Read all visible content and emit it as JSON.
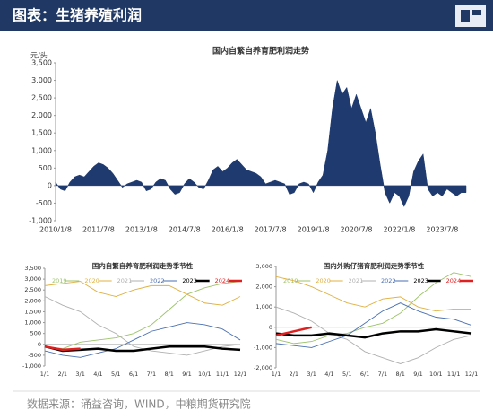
{
  "header": {
    "title": "图表：生猪养殖利润"
  },
  "source": "数据来源：涌益咨询，WIND，中粮期货研究院",
  "chart_data": [
    {
      "type": "area",
      "title": "国内自繁自养育肥利润走势",
      "y_label": "元/头",
      "color": "#1f3a6e",
      "categories": [
        "2010/1/8",
        null,
        null,
        null,
        null,
        null,
        null,
        null,
        null,
        "2011/7/8",
        null,
        null,
        null,
        null,
        null,
        null,
        null,
        null,
        "2013/1/8",
        null,
        null,
        null,
        null,
        null,
        null,
        null,
        null,
        "2014/7/8",
        null,
        null,
        null,
        null,
        null,
        null,
        null,
        null,
        "2016/1/8",
        null,
        null,
        null,
        null,
        null,
        null,
        null,
        null,
        "2017/7/8",
        null,
        null,
        null,
        null,
        null,
        null,
        null,
        null,
        "2019/1/8",
        null,
        null,
        null,
        null,
        null,
        null,
        null,
        null,
        "2020/7/8",
        null,
        null,
        null,
        null,
        null,
        null,
        null,
        null,
        "2022/1/8",
        null,
        null,
        null,
        null,
        null,
        null,
        null,
        null,
        "2023/7/8",
        null,
        null,
        null,
        null,
        null
      ],
      "values": [
        100,
        -100,
        -150,
        100,
        250,
        300,
        250,
        400,
        550,
        650,
        600,
        500,
        350,
        150,
        -50,
        50,
        100,
        150,
        100,
        -150,
        -100,
        100,
        200,
        150,
        -100,
        -250,
        -200,
        50,
        200,
        100,
        -50,
        -100,
        150,
        450,
        550,
        400,
        500,
        650,
        750,
        600,
        450,
        400,
        350,
        250,
        50,
        100,
        150,
        100,
        50,
        -250,
        -200,
        50,
        100,
        50,
        -200,
        100,
        300,
        1000,
        2200,
        3000,
        2600,
        2800,
        2200,
        2600,
        2200,
        1800,
        2200,
        1500,
        600,
        -200,
        -500,
        -200,
        -300,
        -600,
        -300,
        400,
        700,
        900,
        -100,
        -300,
        -200,
        -300,
        -100,
        -200,
        -300,
        -200,
        -200
      ],
      "ylim": [
        -1000,
        3500
      ],
      "yticks": [
        {
          "value": -1000,
          "label": "-1,000"
        },
        -500,
        0,
        500,
        {
          "value": 1000,
          "label": "1,000"
        },
        {
          "value": 1500,
          "label": "1,500"
        },
        {
          "value": 2000,
          "label": "2,000"
        },
        {
          "value": 2500,
          "label": "2,500"
        },
        {
          "value": 3000,
          "label": "3,000"
        },
        {
          "value": 3500,
          "label": "3,500"
        }
      ]
    },
    {
      "type": "line",
      "title": "国内自繁自养育肥利润走势季节性",
      "categories": [
        "1/1",
        "2/1",
        "3/1",
        "4/1",
        "5/1",
        "6/1",
        "7/1",
        "8/1",
        "9/1",
        "10/1",
        "11/1",
        "12/1"
      ],
      "series": [
        {
          "name": "2019",
          "color": "#9cc36a",
          "values": [
            -100,
            -200,
            100,
            200,
            300,
            500,
            900,
            1600,
            2300,
            2600,
            2800,
            2900
          ]
        },
        {
          "name": "2020",
          "color": "#e0b040",
          "values": [
            2700,
            2800,
            2900,
            2400,
            2200,
            2500,
            2700,
            2700,
            2300,
            1900,
            1800,
            2200
          ]
        },
        {
          "name": "2021",
          "color": "#b0b0b0",
          "values": [
            2200,
            1800,
            1500,
            900,
            500,
            -100,
            -300,
            -400,
            -500,
            -300,
            -100,
            0
          ]
        },
        {
          "name": "2022",
          "color": "#4a6fb0",
          "values": [
            -300,
            -500,
            -600,
            -400,
            -200,
            200,
            600,
            800,
            1000,
            900,
            700,
            200
          ]
        },
        {
          "name": "2023",
          "color": "#000000",
          "values": [
            -100,
            -300,
            -250,
            -200,
            -300,
            -300,
            -200,
            -100,
            -100,
            -100,
            -200,
            -250
          ]
        },
        {
          "name": "2024",
          "color": "#e02020",
          "values": [
            -100,
            -250,
            -200,
            null,
            null,
            null,
            null,
            null,
            null,
            null,
            null,
            null
          ]
        }
      ],
      "ylim": [
        -1000,
        3500
      ],
      "yticks": [
        {
          "value": -1000,
          "label": "-1,000"
        },
        -500,
        0,
        500,
        {
          "value": 1000,
          "label": "1,000"
        },
        {
          "value": 1500,
          "label": "1,500"
        },
        {
          "value": 2000,
          "label": "2,000"
        },
        {
          "value": 2500,
          "label": "2,500"
        },
        {
          "value": 3000,
          "label": "3,000"
        },
        {
          "value": 3500,
          "label": "3,500"
        }
      ]
    },
    {
      "type": "line",
      "title": "国内外购仔猪育肥利润走势季节性",
      "categories": [
        "1/1",
        "2/1",
        "3/1",
        "4/1",
        "5/1",
        "6/1",
        "7/1",
        "8/1",
        "9/1",
        "10/1",
        "11/1",
        "12/1"
      ],
      "series": [
        {
          "name": "2019",
          "color": "#9cc36a",
          "values": [
            -600,
            -800,
            -700,
            -400,
            -300,
            0,
            200,
            700,
            1500,
            2200,
            2700,
            2500
          ]
        },
        {
          "name": "2020",
          "color": "#e0b040",
          "values": [
            2500,
            2300,
            2000,
            1600,
            1200,
            1000,
            1400,
            1500,
            1000,
            800,
            900,
            900
          ]
        },
        {
          "name": "2021",
          "color": "#b0b0b0",
          "values": [
            1000,
            700,
            300,
            -300,
            -600,
            -1200,
            -1500,
            -1800,
            -1500,
            -1000,
            -600,
            -400
          ]
        },
        {
          "name": "2022",
          "color": "#4a6fb0",
          "values": [
            -800,
            -900,
            -1000,
            -700,
            -400,
            200,
            800,
            1200,
            800,
            500,
            400,
            100
          ]
        },
        {
          "name": "2023",
          "color": "#000000",
          "values": [
            -300,
            -400,
            -400,
            -300,
            -400,
            -500,
            -300,
            -200,
            -200,
            -100,
            -200,
            -300
          ]
        },
        {
          "name": "2024",
          "color": "#e02020",
          "values": [
            -400,
            -200,
            0,
            null,
            null,
            null,
            null,
            null,
            null,
            null,
            null,
            null
          ]
        }
      ],
      "ylim": [
        -2000,
        3000
      ],
      "yticks": [
        {
          "value": -2000,
          "label": "-2,000"
        },
        {
          "value": -1000,
          "label": "-1,000"
        },
        0,
        {
          "value": 1000,
          "label": "1,000"
        },
        {
          "value": 2000,
          "label": "2,000"
        },
        {
          "value": 3000,
          "label": "3,000"
        }
      ]
    }
  ]
}
